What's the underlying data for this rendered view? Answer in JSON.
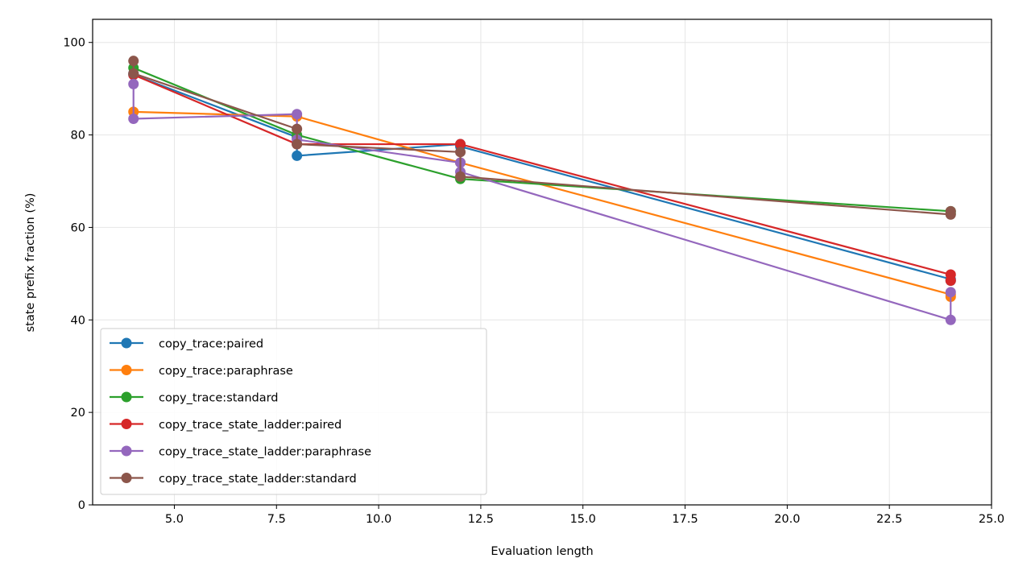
{
  "chart_data": {
    "type": "line",
    "title": "",
    "xlabel": "Evaluation length",
    "ylabel": "state prefix fraction (%)",
    "xlim": [
      3.0,
      25.0
    ],
    "ylim": [
      0,
      105
    ],
    "x_ticks": [
      5.0,
      7.5,
      10.0,
      12.5,
      15.0,
      17.5,
      20.0,
      22.5,
      25.0
    ],
    "x_tick_labels": [
      "5.0",
      "7.5",
      "10.0",
      "12.5",
      "15.0",
      "17.5",
      "20.0",
      "22.5",
      "25.0"
    ],
    "y_ticks": [
      0,
      20,
      40,
      60,
      80,
      100
    ],
    "y_tick_labels": [
      "0",
      "20",
      "40",
      "60",
      "80",
      "100"
    ],
    "grid": true,
    "legend_position": "lower-left",
    "series": [
      {
        "name": "copy_trace:paired",
        "color": "#1f77b4",
        "points": [
          [
            4,
            93.3
          ],
          [
            4,
            93.0
          ],
          [
            8,
            79.5
          ],
          [
            8,
            75.5
          ],
          [
            12,
            78.0
          ],
          [
            12,
            77.5
          ],
          [
            24,
            48.8
          ],
          [
            24,
            48.5
          ]
        ]
      },
      {
        "name": "copy_trace:paraphrase",
        "color": "#ff7f0e",
        "points": [
          [
            4,
            85.0
          ],
          [
            8,
            84.0
          ],
          [
            12,
            74.0
          ],
          [
            24,
            45.5
          ],
          [
            24,
            45.0
          ]
        ]
      },
      {
        "name": "copy_trace:standard",
        "color": "#2ca02c",
        "points": [
          [
            4,
            94.5
          ],
          [
            8,
            80.0
          ],
          [
            12,
            70.5
          ],
          [
            24,
            63.5
          ],
          [
            24,
            63.0
          ]
        ]
      },
      {
        "name": "copy_trace_state_ladder:paired",
        "color": "#d62728",
        "points": [
          [
            4,
            93.0
          ],
          [
            8,
            78.0
          ],
          [
            12,
            78.0
          ],
          [
            24,
            49.8
          ],
          [
            24,
            48.5
          ]
        ]
      },
      {
        "name": "copy_trace_state_ladder:paraphrase",
        "color": "#9467bd",
        "points": [
          [
            4,
            91.0
          ],
          [
            4,
            83.5
          ],
          [
            8,
            84.5
          ],
          [
            8,
            79.0
          ],
          [
            12,
            74.0
          ],
          [
            12,
            72.0
          ],
          [
            24,
            40.0
          ],
          [
            24,
            46.0
          ]
        ]
      },
      {
        "name": "copy_trace_state_ladder:standard",
        "color": "#8c564b",
        "points": [
          [
            4,
            96.0
          ],
          [
            4,
            93.3
          ],
          [
            8,
            81.3
          ],
          [
            8,
            78.0
          ],
          [
            12,
            76.3
          ],
          [
            12,
            71.0
          ],
          [
            24,
            62.8
          ],
          [
            24,
            63.5
          ]
        ]
      }
    ]
  }
}
